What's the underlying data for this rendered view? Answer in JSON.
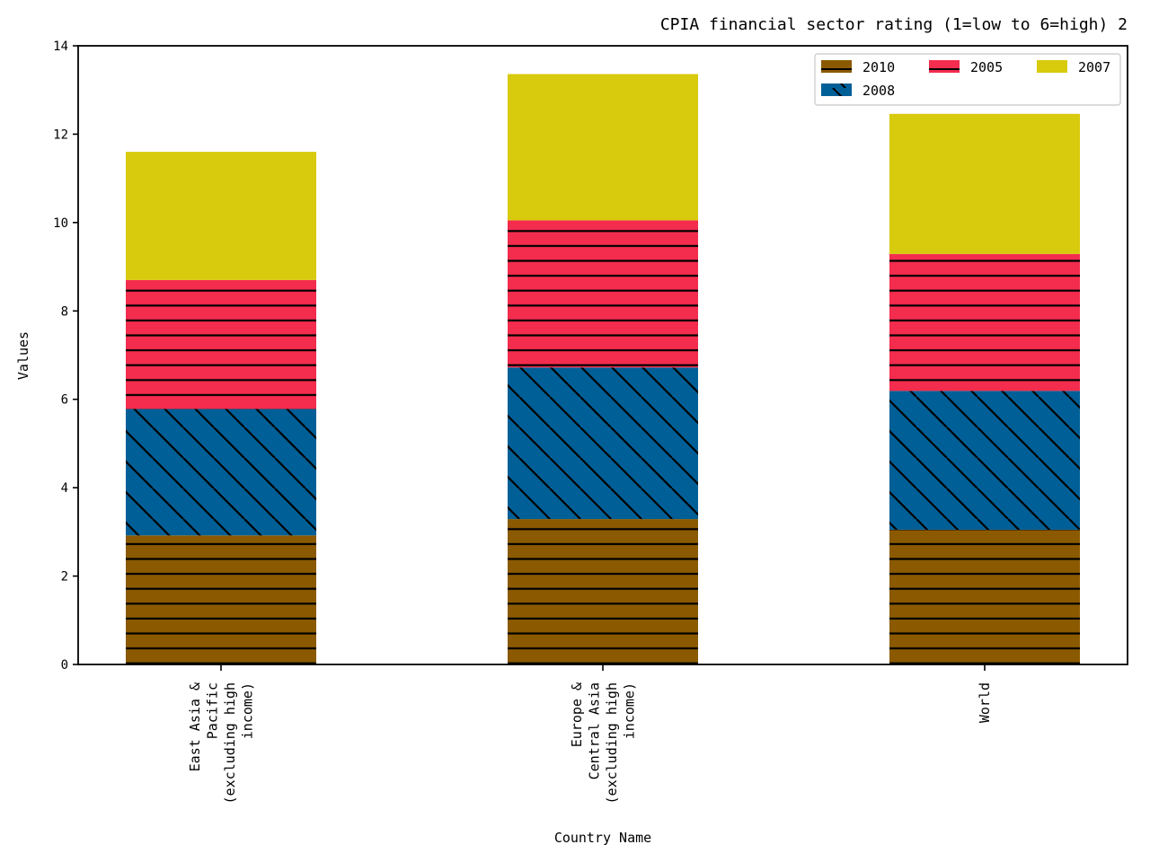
{
  "chart_data": {
    "type": "bar",
    "stacked": true,
    "title": "CPIA financial sector rating (1=low to 6=high) 2",
    "xlabel": "Country Name",
    "ylabel": "Values",
    "ylim": [
      0,
      14
    ],
    "yticks": [
      0,
      2,
      4,
      6,
      8,
      10,
      12,
      14
    ],
    "categories": [
      [
        "East Asia &",
        "Pacific",
        "(excluding high",
        "income)"
      ],
      [
        "Europe &",
        "Central Asia",
        "(excluding high",
        "income)"
      ],
      [
        "World"
      ]
    ],
    "series": [
      {
        "name": "2010",
        "color": "#8b5a00",
        "hatch": "horizontal",
        "values": [
          2.92,
          3.29,
          3.05
        ]
      },
      {
        "name": "2008",
        "color": "#005f96",
        "hatch": "diagonal",
        "values": [
          2.86,
          3.43,
          3.14
        ]
      },
      {
        "name": "2005",
        "color": "#f42c4e",
        "hatch": "horizontal",
        "values": [
          2.92,
          3.33,
          3.1
        ]
      },
      {
        "name": "2007",
        "color": "#d8ca0c",
        "hatch": "none",
        "values": [
          2.9,
          3.31,
          3.17
        ]
      }
    ],
    "legend": {
      "placement": "top-right",
      "columns": 3,
      "order": [
        "2010",
        "2005",
        "2007",
        "2008"
      ]
    },
    "grid": false
  }
}
